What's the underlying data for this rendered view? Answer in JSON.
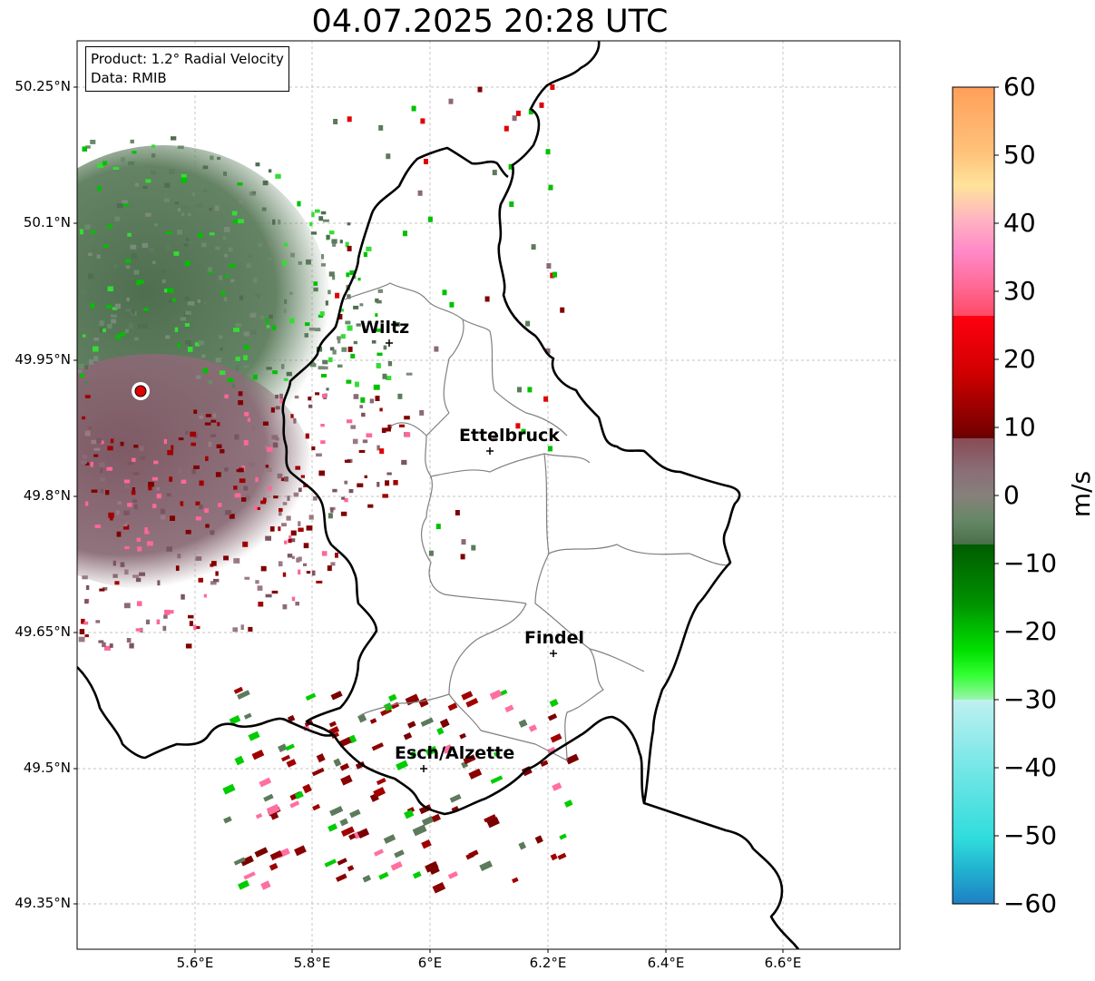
{
  "title": "04.07.2025 20:28 UTC",
  "info": {
    "product": "Product: 1.2° Radial Velocity",
    "data": "Data: RMIB"
  },
  "lat_labels": [
    "50.25°N",
    "50.1°N",
    "49.95°N",
    "49.8°N",
    "49.65°N",
    "49.5°N",
    "49.35°N"
  ],
  "lon_labels": [
    "5.6°E",
    "5.8°E",
    "6°E",
    "6.2°E",
    "6.4°E",
    "6.6°E"
  ],
  "cities": [
    {
      "name": "Wiltz"
    },
    {
      "name": "Ettelbruck"
    },
    {
      "name": "Findel"
    },
    {
      "name": "Esch/Alzette"
    }
  ],
  "colorbar": {
    "unit": "m/s",
    "ticks": [
      "60",
      "50",
      "40",
      "30",
      "20",
      "10",
      "0",
      "−10",
      "−20",
      "−30",
      "−40",
      "−50",
      "−60"
    ],
    "range": [
      -60,
      60
    ]
  },
  "colors": {
    "radar_site": "#e00000",
    "border": "#000000",
    "district": "#808080",
    "inbound_green": "#5c7a5c",
    "outbound_mauve": "#8a6a74"
  }
}
